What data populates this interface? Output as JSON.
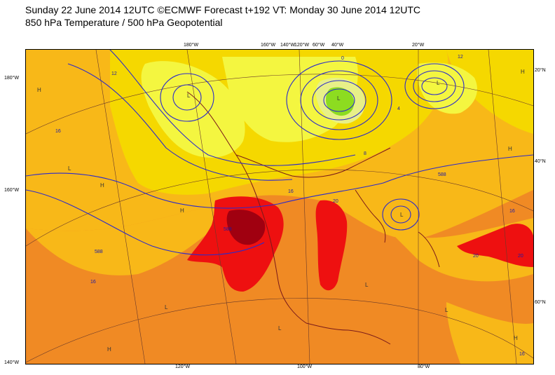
{
  "header": {
    "title_line1": "Sunday 22 June 2014 12UTC ©ECMWF Forecast t+192 VT: Monday 30 June 2014 12UTC",
    "title_line2": "850 hPa Temperature / 500 hPa Geopotential"
  },
  "map": {
    "lat_labels_left": [
      "180°W",
      "160°W",
      "140°W"
    ],
    "lat_labels_right": [
      "20°N",
      "40°N",
      "60°N"
    ],
    "lon_labels_top": [
      "180°W",
      "160°W",
      "140°W",
      "120°W",
      "60°W",
      "40°W",
      "20°W"
    ],
    "lon_labels_bottom": [
      "120°W",
      "100°W",
      "80°W"
    ],
    "temperature_contour_labels": [
      "12",
      "16",
      "20",
      "16",
      "16",
      "20",
      "12",
      "8",
      "4",
      "0",
      "16",
      "20",
      "16"
    ],
    "pressure_markers": [
      "H",
      "L",
      "H",
      "L",
      "H",
      "L",
      "H",
      "L",
      "L",
      "H",
      "L",
      "H",
      "L",
      "H",
      "L",
      "L"
    ],
    "geopotential_labels": [
      "588",
      "588",
      "588"
    ],
    "colors": {
      "very_hot": "#a00010",
      "hot": "#ee1010",
      "warm": "#f08a24",
      "mild": "#f8b818",
      "cool": "#f5d800",
      "cold": "#f4f640",
      "cold2": "#e8f088",
      "freezing": "#8ddc20",
      "contour": "#2a2acc",
      "coast": "#7a1a1a"
    }
  }
}
